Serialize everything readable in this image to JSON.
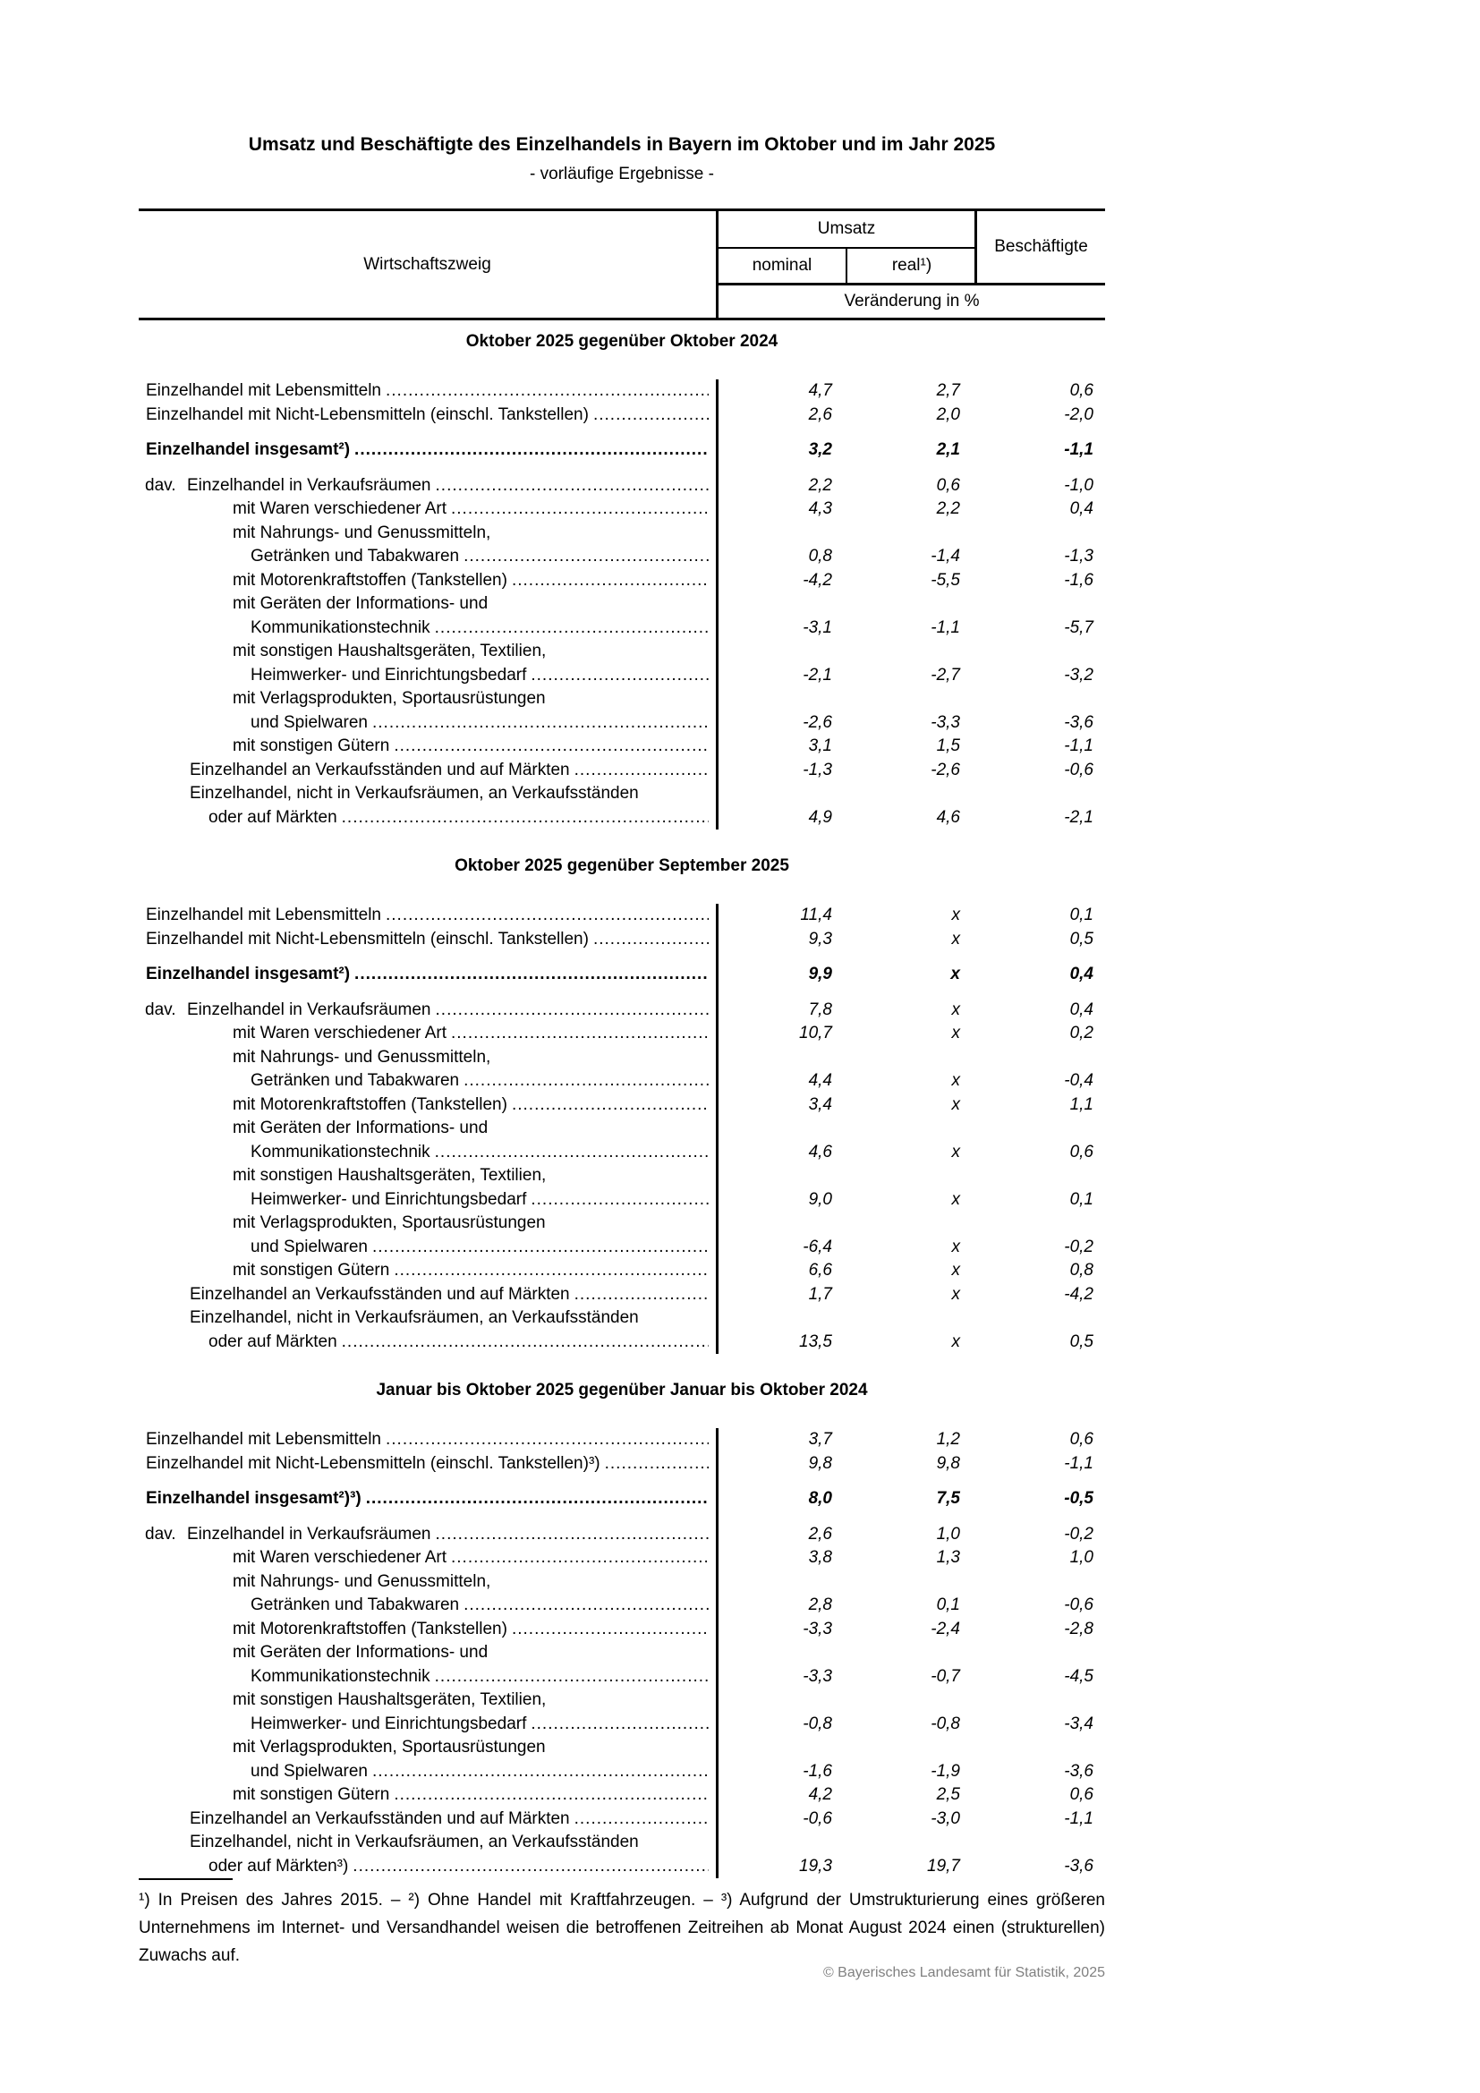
{
  "page": {
    "title": "Umsatz und Beschäftigte des Einzelhandels in Bayern im Oktober und im Jahr 2025",
    "subtitle": "- vorläufige Ergebnisse -",
    "footnote": "¹) In Preisen des Jahres 2015. – ²) Ohne Handel mit Kraftfahrzeugen. – ³) Aufgrund der Umstrukturierung eines größeren Unternehmens im Internet- und Versandhandel weisen die betroffenen Zeitreihen ab Monat August 2024 einen (strukturellen) Zuwachs auf.",
    "copyright": "© Bayerisches Landesamt für Statistik, 2025"
  },
  "colors": {
    "text": "#000000",
    "copyright_gray": "#808080"
  },
  "table": {
    "header": {
      "branch": "Wirtschaftszweig",
      "umsatz": "Umsatz",
      "nominal": "nominal",
      "real": "real¹)",
      "beschaeftigte": "Beschäftigte",
      "unit": "Veränderung in %"
    },
    "sections": [
      {
        "title": "Oktober 2025 gegenüber Oktober 2024",
        "rows": [
          {
            "label": "Einzelhandel mit Lebensmitteln",
            "indent": "l0",
            "values": [
              "4,7",
              "2,7",
              "0,6"
            ]
          },
          {
            "label": "Einzelhandel mit Nicht-Lebensmitteln (einschl. Tankstellen)",
            "indent": "l0",
            "values": [
              "2,6",
              "2,0",
              "-2,0"
            ]
          },
          {
            "gap": true
          },
          {
            "label": "Einzelhandel insgesamt²)",
            "indent": "l0",
            "bold": true,
            "values": [
              "3,2",
              "2,1",
              "-1,1"
            ]
          },
          {
            "gap": true
          },
          {
            "prefix": "dav.",
            "label": "Einzelhandel in Verkaufsräumen",
            "indent": "dav",
            "values": [
              "2,2",
              "0,6",
              "-1,0"
            ]
          },
          {
            "label": "mit Waren verschiedener Art",
            "indent": "l2",
            "values": [
              "4,3",
              "2,2",
              "0,4"
            ]
          },
          {
            "label": "mit Nahrungs- und Genussmitteln,",
            "indent": "l2"
          },
          {
            "label": "Getränken und Tabakwaren",
            "indent": "l2c",
            "values": [
              "0,8",
              "-1,4",
              "-1,3"
            ]
          },
          {
            "label": "mit Motorenkraftstoffen (Tankstellen)",
            "indent": "l2",
            "values": [
              "-4,2",
              "-5,5",
              "-1,6"
            ]
          },
          {
            "label": "mit Geräten der Informations- und",
            "indent": "l2"
          },
          {
            "label": "Kommunikationstechnik",
            "indent": "l2c",
            "values": [
              "-3,1",
              "-1,1",
              "-5,7"
            ]
          },
          {
            "label": "mit sonstigen Haushaltsgeräten, Textilien,",
            "indent": "l2"
          },
          {
            "label": "Heimwerker- und Einrichtungsbedarf",
            "indent": "l2c",
            "values": [
              "-2,1",
              "-2,7",
              "-3,2"
            ]
          },
          {
            "label": "mit Verlagsprodukten, Sportausrüstungen",
            "indent": "l2"
          },
          {
            "label": "und Spielwaren",
            "indent": "l2c",
            "values": [
              "-2,6",
              "-3,3",
              "-3,6"
            ]
          },
          {
            "label": "mit sonstigen Gütern",
            "indent": "l2",
            "values": [
              "3,1",
              "1,5",
              "-1,1"
            ]
          },
          {
            "label": "Einzelhandel an Verkaufsständen und auf Märkten",
            "indent": "l1",
            "values": [
              "-1,3",
              "-2,6",
              "-0,6"
            ]
          },
          {
            "label": "Einzelhandel, nicht in Verkaufsräumen, an Verkaufsständen",
            "indent": "l1"
          },
          {
            "label": "oder auf Märkten",
            "indent": "l1c",
            "values": [
              "4,9",
              "4,6",
              "-2,1"
            ]
          }
        ]
      },
      {
        "title": "Oktober 2025 gegenüber September 2025",
        "rows": [
          {
            "label": "Einzelhandel mit Lebensmitteln",
            "indent": "l0",
            "values": [
              "11,4",
              "x",
              "0,1"
            ]
          },
          {
            "label": "Einzelhandel mit Nicht-Lebensmitteln (einschl. Tankstellen)",
            "indent": "l0",
            "values": [
              "9,3",
              "x",
              "0,5"
            ]
          },
          {
            "gap": true
          },
          {
            "label": "Einzelhandel insgesamt²)",
            "indent": "l0",
            "bold": true,
            "values": [
              "9,9",
              "x",
              "0,4"
            ]
          },
          {
            "gap": true
          },
          {
            "prefix": "dav.",
            "label": "Einzelhandel in Verkaufsräumen",
            "indent": "dav",
            "values": [
              "7,8",
              "x",
              "0,4"
            ]
          },
          {
            "label": "mit Waren verschiedener Art",
            "indent": "l2",
            "values": [
              "10,7",
              "x",
              "0,2"
            ]
          },
          {
            "label": "mit Nahrungs- und Genussmitteln,",
            "indent": "l2"
          },
          {
            "label": "Getränken und Tabakwaren",
            "indent": "l2c",
            "values": [
              "4,4",
              "x",
              "-0,4"
            ]
          },
          {
            "label": "mit Motorenkraftstoffen (Tankstellen)",
            "indent": "l2",
            "values": [
              "3,4",
              "x",
              "1,1"
            ]
          },
          {
            "label": "mit Geräten der Informations- und",
            "indent": "l2"
          },
          {
            "label": "Kommunikationstechnik",
            "indent": "l2c",
            "values": [
              "4,6",
              "x",
              "0,6"
            ]
          },
          {
            "label": "mit sonstigen Haushaltsgeräten, Textilien,",
            "indent": "l2"
          },
          {
            "label": "Heimwerker- und Einrichtungsbedarf",
            "indent": "l2c",
            "values": [
              "9,0",
              "x",
              "0,1"
            ]
          },
          {
            "label": "mit Verlagsprodukten, Sportausrüstungen",
            "indent": "l2"
          },
          {
            "label": "und Spielwaren",
            "indent": "l2c",
            "values": [
              "-6,4",
              "x",
              "-0,2"
            ]
          },
          {
            "label": "mit sonstigen Gütern",
            "indent": "l2",
            "values": [
              "6,6",
              "x",
              "0,8"
            ]
          },
          {
            "label": "Einzelhandel an Verkaufsständen und auf Märkten",
            "indent": "l1",
            "values": [
              "1,7",
              "x",
              "-4,2"
            ]
          },
          {
            "label": "Einzelhandel, nicht in Verkaufsräumen, an Verkaufsständen",
            "indent": "l1"
          },
          {
            "label": "oder auf Märkten",
            "indent": "l1c",
            "values": [
              "13,5",
              "x",
              "0,5"
            ]
          }
        ]
      },
      {
        "title": "Januar bis Oktober 2025 gegenüber Januar bis Oktober 2024",
        "rows": [
          {
            "label": "Einzelhandel mit Lebensmitteln",
            "indent": "l0",
            "values": [
              "3,7",
              "1,2",
              "0,6"
            ]
          },
          {
            "label": "Einzelhandel mit Nicht-Lebensmitteln (einschl. Tankstellen)³)",
            "indent": "l0",
            "values": [
              "9,8",
              "9,8",
              "-1,1"
            ]
          },
          {
            "gap": true
          },
          {
            "label": "Einzelhandel insgesamt²)³)",
            "indent": "l0",
            "bold": true,
            "values": [
              "8,0",
              "7,5",
              "-0,5"
            ]
          },
          {
            "gap": true
          },
          {
            "prefix": "dav.",
            "label": "Einzelhandel in Verkaufsräumen",
            "indent": "dav",
            "values": [
              "2,6",
              "1,0",
              "-0,2"
            ]
          },
          {
            "label": "mit Waren verschiedener Art",
            "indent": "l2",
            "values": [
              "3,8",
              "1,3",
              "1,0"
            ]
          },
          {
            "label": "mit Nahrungs- und Genussmitteln,",
            "indent": "l2"
          },
          {
            "label": "Getränken und Tabakwaren",
            "indent": "l2c",
            "values": [
              "2,8",
              "0,1",
              "-0,6"
            ]
          },
          {
            "label": "mit Motorenkraftstoffen (Tankstellen)",
            "indent": "l2",
            "values": [
              "-3,3",
              "-2,4",
              "-2,8"
            ]
          },
          {
            "label": "mit Geräten der Informations- und",
            "indent": "l2"
          },
          {
            "label": "Kommunikationstechnik",
            "indent": "l2c",
            "values": [
              "-3,3",
              "-0,7",
              "-4,5"
            ]
          },
          {
            "label": "mit sonstigen Haushaltsgeräten, Textilien,",
            "indent": "l2"
          },
          {
            "label": "Heimwerker- und Einrichtungsbedarf",
            "indent": "l2c",
            "values": [
              "-0,8",
              "-0,8",
              "-3,4"
            ]
          },
          {
            "label": "mit Verlagsprodukten, Sportausrüstungen",
            "indent": "l2"
          },
          {
            "label": "und Spielwaren",
            "indent": "l2c",
            "values": [
              "-1,6",
              "-1,9",
              "-3,6"
            ]
          },
          {
            "label": "mit sonstigen Gütern",
            "indent": "l2",
            "values": [
              "4,2",
              "2,5",
              "0,6"
            ]
          },
          {
            "label": "Einzelhandel an Verkaufsständen und auf Märkten",
            "indent": "l1",
            "values": [
              "-0,6",
              "-3,0",
              "-1,1"
            ]
          },
          {
            "label": "Einzelhandel, nicht in Verkaufsräumen, an Verkaufsständen",
            "indent": "l1"
          },
          {
            "label": "oder auf Märkten³)",
            "indent": "l1c",
            "values": [
              "19,3",
              "19,7",
              "-3,6"
            ]
          }
        ]
      }
    ]
  }
}
